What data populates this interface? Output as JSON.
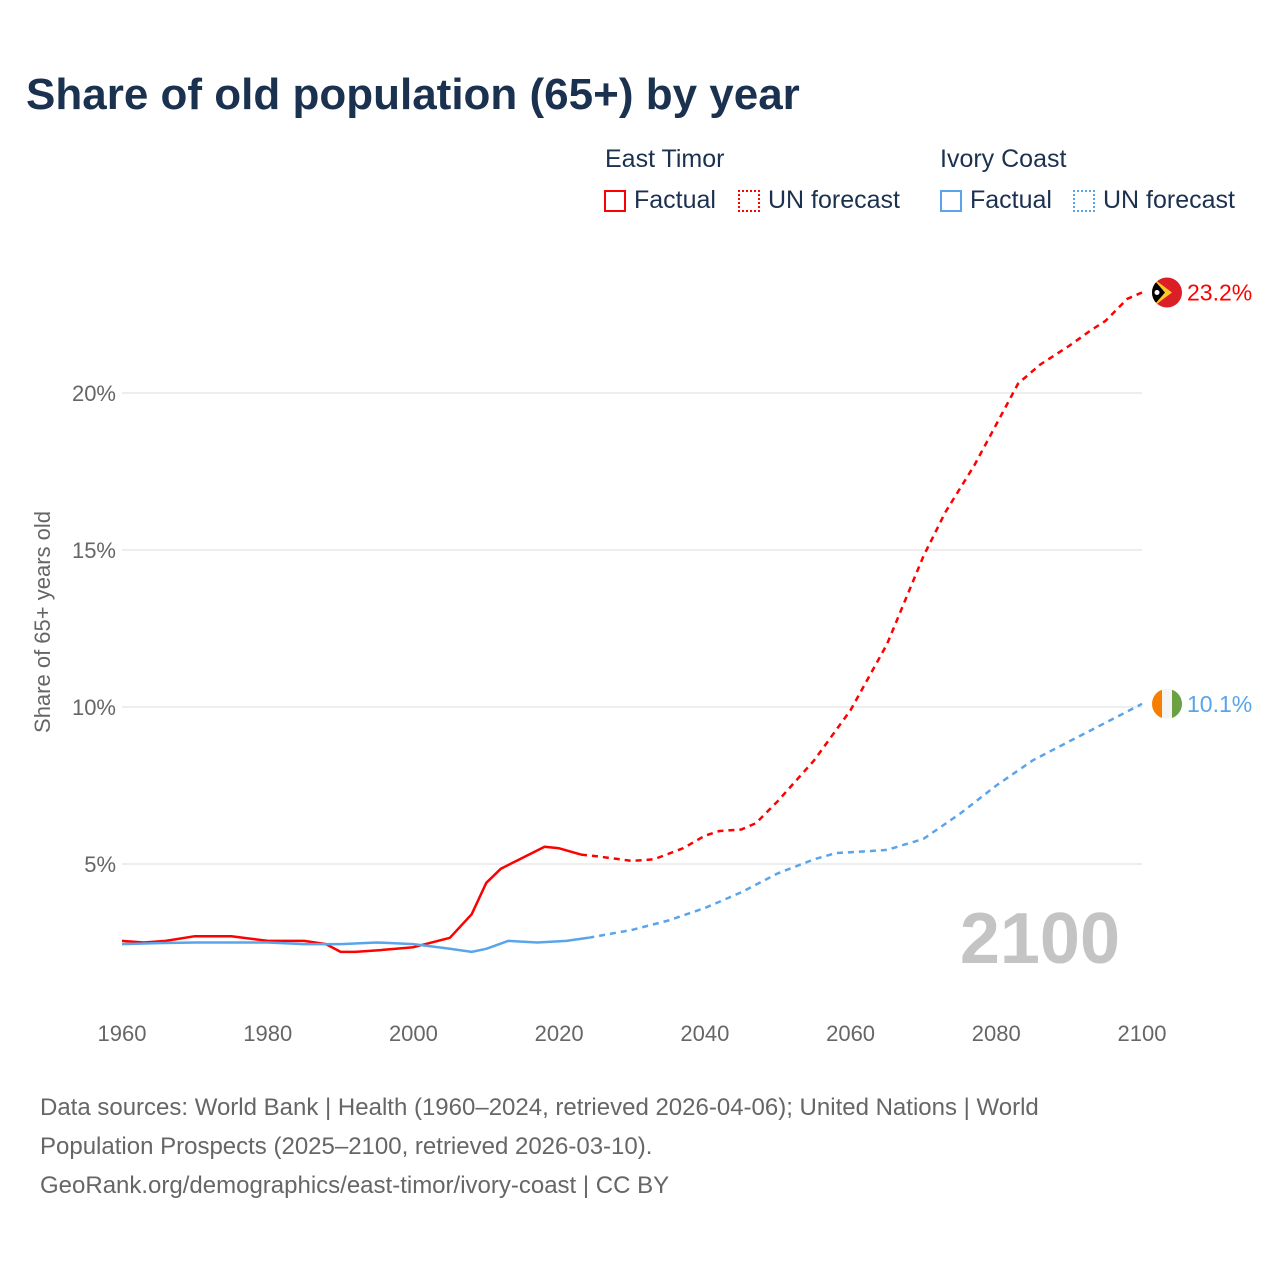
{
  "title": "Share of old population (65+) by year",
  "legend": {
    "groups": [
      {
        "name": "East Timor",
        "color": "#ff0000",
        "factual": "Factual",
        "forecast": "UN forecast"
      },
      {
        "name": "Ivory Coast",
        "color": "#5aa5ea",
        "factual": "Factual",
        "forecast": "UN forecast"
      }
    ]
  },
  "chart_data": {
    "type": "line",
    "title": "Share of old population (65+) by year",
    "xlabel": "",
    "ylabel": "Share of 65+ years old",
    "xlim": [
      1960,
      2100
    ],
    "ylim": [
      0,
      24
    ],
    "xticks": [
      1960,
      1980,
      2000,
      2020,
      2040,
      2060,
      2080,
      2100
    ],
    "yticks": [
      {
        "v": 5,
        "label": "5%"
      },
      {
        "v": 10,
        "label": "10%"
      },
      {
        "v": 15,
        "label": "15%"
      },
      {
        "v": 20,
        "label": "20%"
      }
    ],
    "grid": true,
    "factual_until": 2024,
    "year_watermark": "2100",
    "series": [
      {
        "name": "East Timor",
        "color": "#ff0000",
        "end_label": "23.2%",
        "x": [
          1960,
          1963,
          1966,
          1970,
          1975,
          1980,
          1985,
          1988,
          1990,
          1992,
          1995,
          2000,
          2005,
          2008,
          2010,
          2012,
          2015,
          2018,
          2020,
          2023,
          2025,
          2030,
          2033,
          2037,
          2040,
          2042,
          2045,
          2047,
          2050,
          2055,
          2060,
          2065,
          2070,
          2073,
          2077,
          2080,
          2083,
          2086,
          2090,
          2093,
          2095,
          2098,
          2100
        ],
        "values": [
          2.55,
          2.5,
          2.55,
          2.7,
          2.7,
          2.55,
          2.55,
          2.45,
          2.2,
          2.2,
          2.25,
          2.35,
          2.65,
          3.4,
          4.4,
          4.85,
          5.2,
          5.55,
          5.5,
          5.3,
          5.25,
          5.1,
          5.15,
          5.5,
          5.9,
          6.05,
          6.1,
          6.3,
          7.0,
          8.3,
          9.9,
          12.0,
          14.8,
          16.2,
          17.7,
          19.0,
          20.3,
          20.9,
          21.5,
          22.0,
          22.3,
          23.0,
          23.2
        ]
      },
      {
        "name": "Ivory Coast",
        "color": "#5aa5ea",
        "end_label": "10.1%",
        "x": [
          1960,
          1965,
          1970,
          1980,
          1985,
          1990,
          1995,
          2000,
          2005,
          2008,
          2010,
          2013,
          2017,
          2021,
          2024,
          2030,
          2035,
          2040,
          2045,
          2050,
          2055,
          2058,
          2062,
          2065,
          2070,
          2075,
          2080,
          2085,
          2090,
          2095,
          2100
        ],
        "values": [
          2.45,
          2.48,
          2.5,
          2.5,
          2.45,
          2.45,
          2.5,
          2.45,
          2.3,
          2.2,
          2.3,
          2.55,
          2.5,
          2.55,
          2.65,
          2.9,
          3.2,
          3.6,
          4.1,
          4.7,
          5.15,
          5.35,
          5.4,
          5.45,
          5.8,
          6.6,
          7.5,
          8.3,
          8.9,
          9.5,
          10.1
        ]
      }
    ]
  },
  "footer": {
    "line1": "Data sources: World Bank | Health (1960–2024, retrieved 2026-04-06); United Nations | World",
    "line2": "Population Prospects (2025–2100, retrieved 2026-03-10).",
    "line3": "GeoRank.org/demographics/east-timor/ivory-coast | CC BY"
  }
}
